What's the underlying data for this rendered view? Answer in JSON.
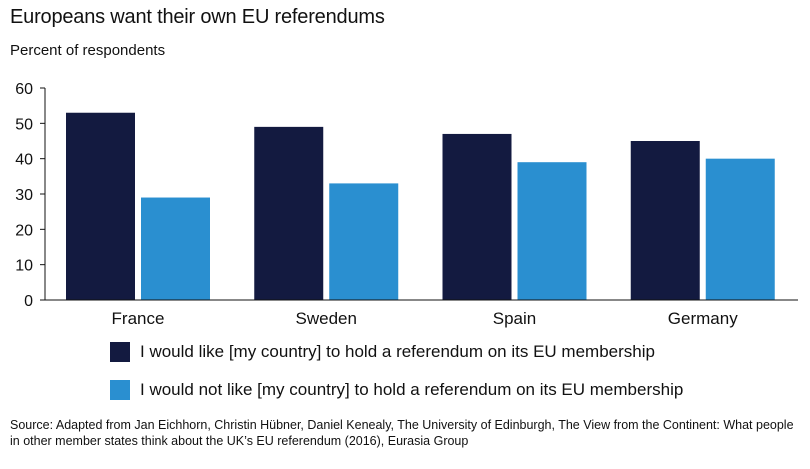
{
  "chart_data": {
    "type": "bar",
    "title": "Europeans want their own EU referendums",
    "subtitle": "Percent of respondents",
    "xlabel": "",
    "ylabel": "",
    "categories": [
      "France",
      "Sweden",
      "Spain",
      "Germany"
    ],
    "series": [
      {
        "name": "I would like [my country] to hold a referendum on its EU membership",
        "color": "#131a40",
        "values": [
          53,
          49,
          47,
          45
        ]
      },
      {
        "name": "I would not like [my country] to hold a referendum on its EU membership",
        "color": "#2a8fd0",
        "values": [
          29,
          33,
          39,
          40
        ]
      }
    ],
    "ylim": [
      0,
      60
    ],
    "yticks": [
      0,
      10,
      20,
      30,
      40,
      50,
      60
    ],
    "grid": false,
    "legend_position": "bottom"
  },
  "source": "Source: Adapted from Jan Eichhorn, Christin Hübner, Daniel Kenealy, The University of Edinburgh, The View from the Continent: What people in other member states think about the UK’s EU referendum (2016), Eurasia Group"
}
